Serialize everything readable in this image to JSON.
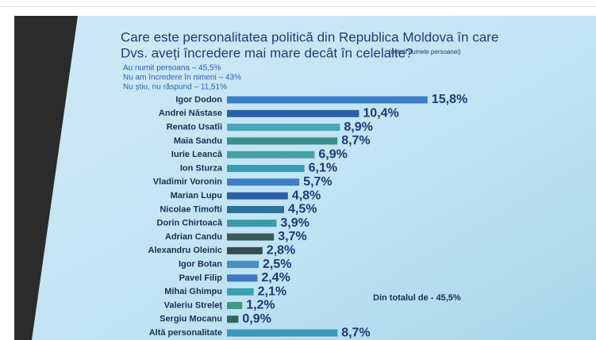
{
  "chart_data": {
    "type": "bar",
    "orientation": "horizontal",
    "title": "Care este personalitatea politică din Republica Moldova în care",
    "title_line2": "Dvs. aveți încredere mai mare decât în celelalte?",
    "title_note": "(notați numele persoanei)",
    "subtitle_lines": [
      "Au numit persoana – 45,5%",
      "Nu am încredere în nimeni – 43%",
      "Nu știu, nu răspund – 11,51%"
    ],
    "annotation": "Din totalul de  - 45,5%",
    "categories": [
      "Igor Dodon",
      "Andrei Năstase",
      "Renato Usatîi",
      "Maia Sandu",
      "Iurie Leancă",
      "Ion Sturza",
      "Vladimir Voronin",
      "Marian Lupu",
      "Nicolae Timofti",
      "Dorin Chirtoacă",
      "Adrian Candu",
      "Alexandru Oleinic",
      "Igor Botan",
      "Pavel Filip",
      "Mihai Ghimpu",
      "Valeriu Streleț",
      "Sergiu Mocanu",
      "Altă personalitate"
    ],
    "values": [
      15.8,
      10.4,
      8.9,
      8.7,
      6.9,
      6.1,
      5.7,
      4.8,
      4.5,
      3.9,
      3.7,
      2.8,
      2.5,
      2.4,
      2.1,
      1.2,
      0.9,
      8.7
    ],
    "value_labels": [
      "15,8%",
      "10,4%",
      "8,9%",
      "8,7%",
      "6,9%",
      "6,1%",
      "5,7%",
      "4,8%",
      "4,5%",
      "3,9%",
      "3,7%",
      "2,8%",
      "2,5%",
      "2,4%",
      "2,1%",
      "1,2%",
      "0,9%",
      "8,7%"
    ],
    "colors": [
      "#3a7ec8",
      "#2d5fa8",
      "#4aa6b8",
      "#3a8f8a",
      "#4aa0a8",
      "#3c9bb0",
      "#3d7fc0",
      "#2d5fa8",
      "#2a6fa0",
      "#3a9aa8",
      "#3a5a5a",
      "#3a4a50",
      "#4a90c0",
      "#3a78c0",
      "#3aa0b0",
      "#3a9a8a",
      "#2f6a5a",
      "#3a98b8"
    ]
  }
}
